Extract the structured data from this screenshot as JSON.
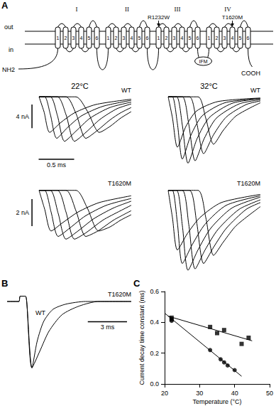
{
  "diagram": {
    "label": "A",
    "domains": [
      "I",
      "II",
      "III",
      "IV"
    ],
    "segments": [
      "1",
      "2",
      "3",
      "4",
      "5",
      "6"
    ],
    "outside": "out",
    "inside": "in",
    "n_terminus": "NH2",
    "c_terminus": "COOH",
    "inactivation_motif": "IFM",
    "mutations": [
      {
        "label": "R1232W",
        "domain": 3,
        "segment": 1
      },
      {
        "label": "T1620M",
        "domain": 4,
        "segment": 4
      }
    ]
  },
  "chart_data": [
    {
      "type": "line",
      "title": "22°C",
      "annotations": [
        "WT"
      ],
      "color": "#000000",
      "tick_labels": false,
      "xlim": [
        -0.15,
        1.3
      ],
      "ylim": [
        -11.5,
        0.5
      ],
      "scale_bars": [
        {
          "axis": "y",
          "value": 4,
          "label": "4 nA"
        },
        {
          "axis": "x",
          "value": 0.5,
          "label": "0.5 ms"
        }
      ],
      "series": [
        {
          "x": [
            0,
            0.07,
            0.15,
            0.3,
            0.5,
            0.8,
            1.3
          ],
          "values": [
            0,
            -2.5,
            -6.0,
            -4.4,
            -2.7,
            -1.3,
            -0.4
          ]
        },
        {
          "x": [
            0,
            0.08,
            0.16,
            0.25,
            0.4,
            0.6,
            0.9,
            1.3
          ],
          "values": [
            0,
            0,
            -3.0,
            -7.0,
            -5.2,
            -3.2,
            -1.6,
            -0.6
          ]
        },
        {
          "x": [
            0,
            0.16,
            0.26,
            0.36,
            0.52,
            0.72,
            1.0,
            1.3
          ],
          "values": [
            0,
            0,
            -3.2,
            -7.5,
            -5.8,
            -3.6,
            -1.8,
            -0.9
          ]
        },
        {
          "x": [
            0,
            0.26,
            0.38,
            0.5,
            0.66,
            0.86,
            1.1,
            1.3
          ],
          "values": [
            0,
            0,
            -3.0,
            -7.5,
            -6.0,
            -3.8,
            -2.0,
            -1.2
          ]
        },
        {
          "x": [
            0,
            0.38,
            0.52,
            0.66,
            0.82,
            1.0,
            1.15,
            1.3
          ],
          "values": [
            0,
            0,
            -2.8,
            -7.0,
            -5.7,
            -3.9,
            -2.7,
            -1.8
          ]
        },
        {
          "x": [
            0,
            0.52,
            0.68,
            0.85,
            1.0,
            1.15,
            1.3
          ],
          "values": [
            0,
            0,
            -2.4,
            -6.0,
            -5.0,
            -3.6,
            -2.5
          ]
        }
      ]
    },
    {
      "type": "line",
      "title": "32°C",
      "annotations": [
        "WT"
      ],
      "color": "#000000",
      "tick_labels": false,
      "xlim": [
        -0.15,
        1.3
      ],
      "ylim": [
        -11.5,
        0.5
      ],
      "series": [
        {
          "x": [
            0,
            0.06,
            0.13,
            0.25,
            0.4,
            0.7,
            1.3
          ],
          "values": [
            0,
            -3.5,
            -8.5,
            -5.0,
            -2.4,
            -0.8,
            -0.2
          ]
        },
        {
          "x": [
            0,
            0.06,
            0.13,
            0.2,
            0.32,
            0.48,
            0.8,
            1.3
          ],
          "values": [
            0,
            0,
            -4.5,
            -10.5,
            -6.5,
            -3.2,
            -1.0,
            -0.3
          ]
        },
        {
          "x": [
            0,
            0.12,
            0.2,
            0.28,
            0.41,
            0.58,
            0.9,
            1.3
          ],
          "values": [
            0,
            0,
            -4.8,
            -11.2,
            -7.0,
            -3.5,
            -1.1,
            -0.3
          ]
        },
        {
          "x": [
            0,
            0.2,
            0.29,
            0.38,
            0.51,
            0.68,
            1.0,
            1.3
          ],
          "values": [
            0,
            0,
            -4.6,
            -10.8,
            -7.0,
            -3.6,
            -1.2,
            -0.5
          ]
        },
        {
          "x": [
            0,
            0.3,
            0.4,
            0.5,
            0.64,
            0.82,
            1.1,
            1.3
          ],
          "values": [
            0,
            0,
            -4.2,
            -9.6,
            -6.4,
            -3.4,
            -1.3,
            -0.7
          ]
        },
        {
          "x": [
            0,
            0.42,
            0.53,
            0.64,
            0.78,
            0.96,
            1.3
          ],
          "values": [
            0,
            0,
            -3.6,
            -8.0,
            -5.6,
            -3.2,
            -1.0
          ]
        }
      ]
    },
    {
      "type": "line",
      "annotations": [
        "T1620M"
      ],
      "color": "#000000",
      "tick_labels": false,
      "xlim": [
        -0.15,
        1.3
      ],
      "ylim": [
        -6,
        0.3
      ],
      "scale_bars": [
        {
          "axis": "y",
          "value": 2,
          "label": "2 nA"
        }
      ],
      "series": [
        {
          "x": [
            0,
            0.08,
            0.17,
            0.33,
            0.55,
            0.85,
            1.3
          ],
          "values": [
            0,
            -1.4,
            -3.0,
            -2.4,
            -1.6,
            -0.9,
            -0.4
          ]
        },
        {
          "x": [
            0,
            0.08,
            0.17,
            0.27,
            0.43,
            0.65,
            0.95,
            1.3
          ],
          "values": [
            0,
            0,
            -1.6,
            -3.4,
            -2.8,
            -1.9,
            -1.1,
            -0.6
          ]
        },
        {
          "x": [
            0,
            0.16,
            0.27,
            0.38,
            0.55,
            0.77,
            1.05,
            1.3
          ],
          "values": [
            0,
            0,
            -1.7,
            -3.6,
            -3.0,
            -2.1,
            -1.3,
            -0.8
          ]
        },
        {
          "x": [
            0,
            0.26,
            0.38,
            0.5,
            0.67,
            0.9,
            1.15,
            1.3
          ],
          "values": [
            0,
            0,
            -1.6,
            -3.6,
            -3.1,
            -2.2,
            -1.5,
            -1.1
          ]
        },
        {
          "x": [
            0,
            0.38,
            0.52,
            0.66,
            0.83,
            1.05,
            1.3
          ],
          "values": [
            0,
            0,
            -1.5,
            -3.4,
            -3.0,
            -2.2,
            -1.5
          ]
        },
        {
          "x": [
            0,
            0.52,
            0.68,
            0.84,
            1.0,
            1.15,
            1.3
          ],
          "values": [
            0,
            0,
            -1.3,
            -3.0,
            -2.7,
            -2.2,
            -1.8
          ]
        }
      ]
    },
    {
      "type": "line",
      "annotations": [
        "T1620M"
      ],
      "color": "#000000",
      "tick_labels": false,
      "xlim": [
        -0.15,
        1.3
      ],
      "ylim": [
        -6,
        0.3
      ],
      "series": [
        {
          "x": [
            0,
            0.06,
            0.13,
            0.27,
            0.45,
            0.75,
            1.3
          ],
          "values": [
            0,
            -2.0,
            -4.4,
            -3.2,
            -2.0,
            -0.9,
            -0.3
          ]
        },
        {
          "x": [
            0,
            0.06,
            0.13,
            0.2,
            0.34,
            0.52,
            0.82,
            1.3
          ],
          "values": [
            0,
            0,
            -2.4,
            -5.4,
            -4.0,
            -2.5,
            -1.1,
            -0.4
          ]
        },
        {
          "x": [
            0,
            0.12,
            0.2,
            0.28,
            0.42,
            0.6,
            0.9,
            1.3
          ],
          "values": [
            0,
            0,
            -2.6,
            -5.9,
            -4.4,
            -2.8,
            -1.3,
            -0.5
          ]
        },
        {
          "x": [
            0,
            0.2,
            0.29,
            0.38,
            0.52,
            0.7,
            1.0,
            1.3
          ],
          "values": [
            0,
            0,
            -2.5,
            -5.8,
            -4.4,
            -2.9,
            -1.4,
            -0.7
          ]
        },
        {
          "x": [
            0,
            0.3,
            0.4,
            0.5,
            0.64,
            0.82,
            1.1,
            1.3
          ],
          "values": [
            0,
            0,
            -2.3,
            -5.4,
            -4.2,
            -2.8,
            -1.4,
            -0.9
          ]
        },
        {
          "x": [
            0,
            0.42,
            0.53,
            0.64,
            0.78,
            0.96,
            1.3
          ],
          "values": [
            0,
            0,
            -2.0,
            -4.8,
            -3.8,
            -2.6,
            -1.2
          ]
        }
      ]
    },
    {
      "type": "line",
      "title": "B",
      "annotations": [
        "T1620M",
        "WT"
      ],
      "color": "#000000",
      "tick_labels": false,
      "xlim": [
        0,
        9.5
      ],
      "ylim": [
        -1.05,
        0.15
      ],
      "scale_bars": [
        {
          "axis": "x",
          "value": 3,
          "label": "3 ms"
        }
      ],
      "series": [
        {
          "x": [
            0,
            0.9,
            1.0,
            1.4,
            1.5,
            1.9,
            2.5,
            3.2,
            4.2,
            5.5,
            7,
            9.5
          ],
          "values": [
            0,
            0,
            0.08,
            0.08,
            0,
            -1.0,
            -0.75,
            -0.45,
            -0.2,
            -0.07,
            0,
            0
          ]
        },
        {
          "x": [
            0,
            0.9,
            1.0,
            1.4,
            1.5,
            1.9,
            2.3,
            2.8,
            3.5,
            4.5,
            6,
            9.5
          ],
          "values": [
            0,
            0,
            0.08,
            0.08,
            0,
            -1.0,
            -0.6,
            -0.3,
            -0.12,
            -0.04,
            0,
            0
          ]
        }
      ]
    },
    {
      "type": "scatter",
      "title": "C",
      "color": "#000000",
      "grid": false,
      "x_label": "Temperature (°C)",
      "y_label": "Current decay time constant (ms)",
      "xlim": [
        20,
        50
      ],
      "xticks": [
        20,
        30,
        40,
        50
      ],
      "ylim": [
        0,
        0.6
      ],
      "yticks": [
        {
          "value": 0,
          "label": "0.0"
        },
        0.2,
        0.4,
        0.6
      ],
      "series": [
        {
          "marker": "square",
          "x": [
            22,
            22,
            33,
            35,
            37,
            42,
            44
          ],
          "values": [
            0.43,
            0.42,
            0.37,
            0.33,
            0.35,
            0.26,
            0.3
          ]
        },
        {
          "marker": "circle",
          "x": [
            22,
            33,
            36,
            37,
            38,
            40
          ],
          "values": [
            0.41,
            0.22,
            0.16,
            0.14,
            0.12,
            0.09
          ]
        },
        {
          "type": "line",
          "line_style": "solid",
          "x": [
            21,
            45
          ],
          "values": [
            0.44,
            0.28
          ]
        },
        {
          "type": "line",
          "line_style": "solid",
          "x": [
            20,
            42
          ],
          "values": [
            0.46,
            0.05
          ]
        }
      ]
    }
  ]
}
